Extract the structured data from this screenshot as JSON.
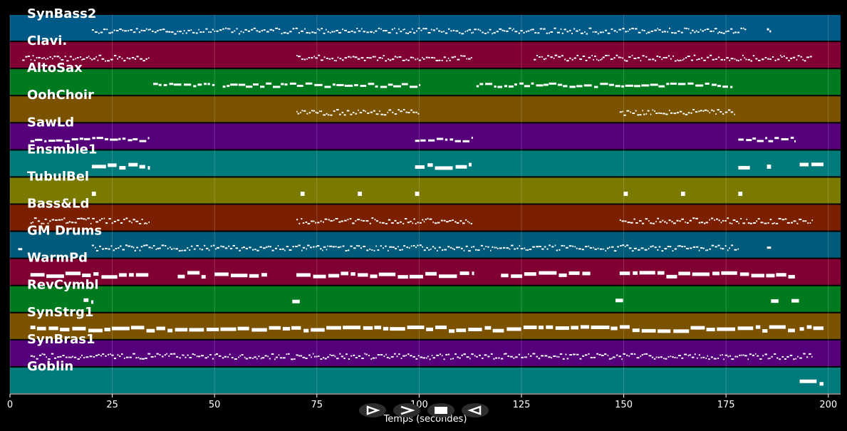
{
  "chart_data": {
    "type": "piano-roll",
    "xlabel": "Temps (secondes)",
    "xlim": [
      0,
      203
    ],
    "xticks": [
      0,
      25,
      50,
      75,
      100,
      125,
      150,
      175,
      200
    ],
    "grid": true,
    "tracks": [
      {
        "name": "SynBass2",
        "color": "#005a87",
        "segments": [
          [
            20,
            180,
            "dense"
          ],
          [
            185,
            186,
            "dash"
          ]
        ]
      },
      {
        "name": "Clavi.",
        "color": "#800033",
        "segments": [
          [
            3,
            34,
            "dense"
          ],
          [
            70,
            113,
            "dense"
          ],
          [
            128,
            196,
            "dense"
          ]
        ]
      },
      {
        "name": "AltoSax",
        "color": "#007a1f",
        "segments": [
          [
            35,
            50,
            "dash"
          ],
          [
            52,
            100,
            "dash"
          ],
          [
            114,
            177,
            "dash"
          ]
        ]
      },
      {
        "name": "OohChoir",
        "color": "#7a5200",
        "segments": [
          [
            70,
            100,
            "dense"
          ],
          [
            149,
            177,
            "dense"
          ]
        ]
      },
      {
        "name": "SawLd",
        "color": "#55007a",
        "segments": [
          [
            5,
            34,
            "dash"
          ],
          [
            99,
            113,
            "dash"
          ],
          [
            178,
            192,
            "dash"
          ]
        ]
      },
      {
        "name": "Ensmble1",
        "color": "#007a7a",
        "segments": [
          [
            20,
            34,
            "block"
          ],
          [
            99,
            113,
            "block"
          ],
          [
            178,
            181,
            "block"
          ],
          [
            185,
            186,
            "block"
          ],
          [
            193,
            199,
            "block"
          ]
        ]
      },
      {
        "name": "TubulBel",
        "color": "#7a7a00",
        "segments": [
          [
            20,
            21,
            "block"
          ],
          [
            71,
            72,
            "block"
          ],
          [
            85,
            86,
            "block"
          ],
          [
            99,
            100,
            "block"
          ],
          [
            150,
            151,
            "block"
          ],
          [
            164,
            165,
            "block"
          ],
          [
            178,
            179,
            "block"
          ]
        ]
      },
      {
        "name": "Bass&Ld",
        "color": "#7a1f00",
        "segments": [
          [
            5,
            34,
            "dense"
          ],
          [
            70,
            99,
            "dense"
          ],
          [
            99,
            113,
            "dense"
          ],
          [
            149,
            178,
            "dense"
          ],
          [
            178,
            196,
            "dense"
          ]
        ]
      },
      {
        "name": "GM Drums",
        "color": "#005a7a",
        "segments": [
          [
            2,
            3,
            "dash"
          ],
          [
            20,
            178,
            "dense"
          ],
          [
            185,
            186,
            "dash"
          ]
        ]
      },
      {
        "name": "WarmPd",
        "color": "#800033",
        "segments": [
          [
            5,
            34,
            "block"
          ],
          [
            41,
            48,
            "block"
          ],
          [
            50,
            63,
            "block"
          ],
          [
            70,
            113,
            "block"
          ],
          [
            120,
            142,
            "block"
          ],
          [
            149,
            192,
            "block"
          ]
        ]
      },
      {
        "name": "RevCymbl",
        "color": "#007a1f",
        "segments": [
          [
            18,
            20,
            "block"
          ],
          [
            69,
            71,
            "block"
          ],
          [
            148,
            150,
            "block"
          ],
          [
            186,
            188,
            "block"
          ],
          [
            191,
            193,
            "block"
          ]
        ]
      },
      {
        "name": "SynStrg1",
        "color": "#7a5200",
        "segments": [
          [
            5,
            192,
            "block"
          ],
          [
            193,
            199,
            "block"
          ]
        ]
      },
      {
        "name": "SynBras1",
        "color": "#55007a",
        "segments": [
          [
            5,
            196,
            "dense"
          ]
        ]
      },
      {
        "name": "Goblin",
        "color": "#007a7a",
        "segments": [
          [
            193,
            199,
            "block"
          ]
        ]
      }
    ]
  },
  "controls": [
    {
      "name": "play-button",
      "icon": "play-outline-icon"
    },
    {
      "name": "fast-forward-button",
      "icon": "chevron-right-icon"
    },
    {
      "name": "stop-button",
      "icon": "stop-icon"
    },
    {
      "name": "rewind-button",
      "icon": "rewind-icon"
    }
  ]
}
